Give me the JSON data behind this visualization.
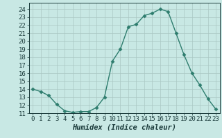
{
  "x": [
    0,
    1,
    2,
    3,
    4,
    5,
    6,
    7,
    8,
    9,
    10,
    11,
    12,
    13,
    14,
    15,
    16,
    17,
    18,
    19,
    20,
    21,
    22,
    23
  ],
  "y": [
    14.0,
    13.7,
    13.2,
    12.1,
    11.3,
    11.1,
    11.2,
    11.2,
    11.7,
    13.0,
    17.5,
    19.0,
    21.8,
    22.1,
    23.2,
    23.5,
    24.0,
    23.7,
    21.0,
    18.3,
    16.0,
    14.5,
    12.8,
    11.5
  ],
  "line_color": "#2e7d6e",
  "marker": "D",
  "marker_size": 2.5,
  "bg_color": "#c8e8e4",
  "grid_color": "#aac8c4",
  "xlabel": "Humidex (Indice chaleur)",
  "ylim": [
    11,
    24.8
  ],
  "xlim": [
    -0.5,
    23.5
  ],
  "yticks": [
    11,
    12,
    13,
    14,
    15,
    16,
    17,
    18,
    19,
    20,
    21,
    22,
    23,
    24
  ],
  "xticks": [
    0,
    1,
    2,
    3,
    4,
    5,
    6,
    7,
    8,
    9,
    10,
    11,
    12,
    13,
    14,
    15,
    16,
    17,
    18,
    19,
    20,
    21,
    22,
    23
  ],
  "axis_color": "#1a3a3a",
  "tick_color": "#1a3a3a",
  "font_size": 6.5,
  "xlabel_fontsize": 7.5
}
